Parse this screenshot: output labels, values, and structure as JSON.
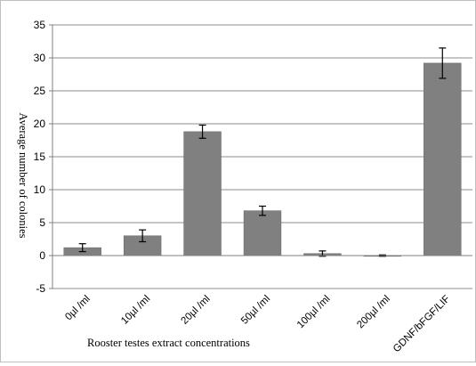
{
  "chart_data": {
    "type": "bar",
    "title": "",
    "xlabel": "Rooster testes extract concentrations",
    "ylabel": "Average number of colonies",
    "ylim": [
      -5,
      35
    ],
    "yticks": [
      -5,
      0,
      5,
      10,
      15,
      20,
      25,
      30,
      35
    ],
    "grid": true,
    "legend": "none",
    "categories": [
      "0µl /ml",
      "10µl /ml",
      "20µl /ml",
      "50µl /ml",
      "100µl /ml",
      "200µl /ml",
      "GDNF/bFGF/LIF"
    ],
    "values": [
      1.2,
      3.0,
      18.8,
      6.8,
      0.3,
      0.0,
      29.2
    ],
    "errors": [
      0.6,
      0.9,
      1.0,
      0.7,
      0.4,
      0.1,
      2.3
    ],
    "colors": {
      "bar": "#808080",
      "bar_edge": "#6b6b6b",
      "grid": "#8c8c8c",
      "axis": "#808080",
      "error_bar": "#000000"
    }
  }
}
